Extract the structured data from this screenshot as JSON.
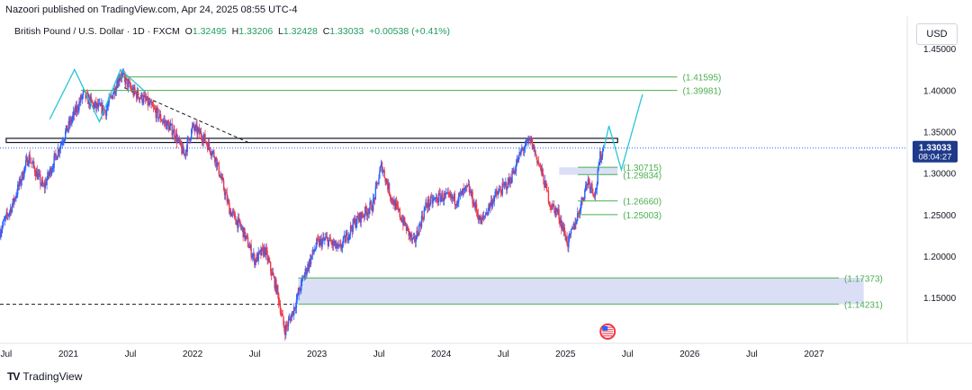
{
  "header": {
    "published": "Nazoori published on TradingView.com, Apr 24, 2025 08:55 UTC-4"
  },
  "legend": {
    "symbol": "British Pound / U.S. Dollar · 1D · FXCM",
    "o_label": "O",
    "o_value": "1.32495",
    "h_label": "H",
    "h_value": "1.33206",
    "l_label": "L",
    "l_value": "1.32428",
    "c_label": "C",
    "c_value": "1.33033",
    "change": "+0.00538 (+0.41%)"
  },
  "currency_button": "USD",
  "brand": {
    "name": "TradingView",
    "logo_text": "TV"
  },
  "colors": {
    "up": "#2962ff",
    "down": "#f23645",
    "level": "#4caf50",
    "zone": "#d6dcf5",
    "projection": "#26c6da",
    "price_badge": "#1e3a8a"
  },
  "chart_data": {
    "type": "candlestick",
    "title": "British Pound / U.S. Dollar · 1D · FXCM",
    "y_axis": {
      "range": [
        1.095,
        1.46
      ],
      "ticks": [
        {
          "v": 1.45,
          "label": "1.45000"
        },
        {
          "v": 1.4,
          "label": "1.40000"
        },
        {
          "v": 1.35,
          "label": "1.35000"
        },
        {
          "v": 1.3,
          "label": "1.30000"
        },
        {
          "v": 1.25,
          "label": "1.25000"
        },
        {
          "v": 1.2,
          "label": "1.20000"
        },
        {
          "v": 1.15,
          "label": "1.15000"
        }
      ]
    },
    "x_axis": {
      "range": [
        2020.45,
        2027.75
      ],
      "ticks": [
        {
          "t": 2020.5,
          "label": "Jul"
        },
        {
          "t": 2021.0,
          "label": "2021"
        },
        {
          "t": 2021.5,
          "label": "Jul"
        },
        {
          "t": 2022.0,
          "label": "2022"
        },
        {
          "t": 2022.5,
          "label": "Jul"
        },
        {
          "t": 2023.0,
          "label": "2023"
        },
        {
          "t": 2023.5,
          "label": "Jul"
        },
        {
          "t": 2024.0,
          "label": "2024"
        },
        {
          "t": 2024.5,
          "label": "Jul"
        },
        {
          "t": 2025.0,
          "label": "2025"
        },
        {
          "t": 2025.5,
          "label": "Jul"
        },
        {
          "t": 2026.0,
          "label": "2026"
        },
        {
          "t": 2026.5,
          "label": "Jul"
        },
        {
          "t": 2027.0,
          "label": "2027"
        }
      ]
    },
    "price_path": [
      [
        2020.45,
        1.23
      ],
      [
        2020.55,
        1.262
      ],
      [
        2020.68,
        1.32
      ],
      [
        2020.8,
        1.282
      ],
      [
        2020.95,
        1.34
      ],
      [
        2021.05,
        1.372
      ],
      [
        2021.12,
        1.395
      ],
      [
        2021.2,
        1.382
      ],
      [
        2021.3,
        1.375
      ],
      [
        2021.42,
        1.42
      ],
      [
        2021.52,
        1.398
      ],
      [
        2021.62,
        1.388
      ],
      [
        2021.75,
        1.365
      ],
      [
        2021.85,
        1.35
      ],
      [
        2021.93,
        1.322
      ],
      [
        2022.0,
        1.355
      ],
      [
        2022.08,
        1.345
      ],
      [
        2022.18,
        1.32
      ],
      [
        2022.3,
        1.255
      ],
      [
        2022.4,
        1.232
      ],
      [
        2022.5,
        1.195
      ],
      [
        2022.58,
        1.208
      ],
      [
        2022.68,
        1.158
      ],
      [
        2022.74,
        1.11
      ],
      [
        2022.8,
        1.13
      ],
      [
        2022.9,
        1.178
      ],
      [
        2023.0,
        1.215
      ],
      [
        2023.08,
        1.22
      ],
      [
        2023.18,
        1.208
      ],
      [
        2023.3,
        1.24
      ],
      [
        2023.45,
        1.262
      ],
      [
        2023.52,
        1.31
      ],
      [
        2023.6,
        1.27
      ],
      [
        2023.7,
        1.24
      ],
      [
        2023.78,
        1.215
      ],
      [
        2023.88,
        1.262
      ],
      [
        2024.0,
        1.272
      ],
      [
        2024.12,
        1.268
      ],
      [
        2024.22,
        1.282
      ],
      [
        2024.32,
        1.24
      ],
      [
        2024.42,
        1.27
      ],
      [
        2024.55,
        1.29
      ],
      [
        2024.65,
        1.328
      ],
      [
        2024.72,
        1.34
      ],
      [
        2024.8,
        1.305
      ],
      [
        2024.88,
        1.262
      ],
      [
        2024.94,
        1.252
      ],
      [
        2025.02,
        1.215
      ],
      [
        2025.1,
        1.25
      ],
      [
        2025.18,
        1.292
      ],
      [
        2025.24,
        1.275
      ],
      [
        2025.28,
        1.32
      ],
      [
        2025.31,
        1.33
      ]
    ],
    "current_price": {
      "value": 1.33033,
      "label": "1.33033",
      "countdown": "08:04:27"
    },
    "support_resistance": [
      {
        "label": "(1.41595)",
        "value": 1.41595,
        "t1": 2021.4,
        "t2": 2025.9
      },
      {
        "label": "(1.39981)",
        "value": 1.39981,
        "t1": 2021.1,
        "t2": 2025.9
      },
      {
        "label": "(1.30715)",
        "value": 1.30715,
        "t1": 2025.1,
        "t2": 2025.42
      },
      {
        "label": "(1.29834)",
        "value": 1.29834,
        "t1": 2025.1,
        "t2": 2025.42
      },
      {
        "label": "(1.26660)",
        "value": 1.2666,
        "t1": 2025.1,
        "t2": 2025.42
      },
      {
        "label": "(1.25003)",
        "value": 1.25003,
        "t1": 2025.1,
        "t2": 2025.42
      },
      {
        "label": "(1.17373)",
        "value": 1.17373,
        "t1": 2022.85,
        "t2": 2027.2
      },
      {
        "label": "(1.14231)",
        "value": 1.14231,
        "t1": 2022.85,
        "t2": 2027.2
      }
    ],
    "zones": [
      {
        "name": "upper-zone",
        "from": 1.298,
        "to": 1.307,
        "t1": 2024.95,
        "t2": 2025.42
      },
      {
        "name": "lower-zone",
        "from": 1.142,
        "to": 1.174,
        "t1": 2022.85,
        "t2": 2027.4
      }
    ],
    "resistance_channel": {
      "from": 1.337,
      "to": 1.342,
      "t1": 2020.5,
      "t2": 2025.42
    },
    "trendline": {
      "points": [
        [
          2021.45,
          1.403
        ],
        [
          2022.45,
          1.337
        ]
      ]
    },
    "dashed_support": {
      "value": 1.142,
      "t1": 2020.45,
      "t2": 2022.8
    },
    "projection_left": [
      [
        2020.85,
        1.365
      ],
      [
        2021.05,
        1.425
      ],
      [
        2021.25,
        1.362
      ],
      [
        2021.42,
        1.425
      ],
      [
        2021.62,
        1.398
      ]
    ],
    "projection_right": [
      [
        2025.31,
        1.33
      ],
      [
        2025.35,
        1.357
      ],
      [
        2025.45,
        1.304
      ],
      [
        2025.62,
        1.395
      ]
    ],
    "price_line_style": "dotted"
  }
}
